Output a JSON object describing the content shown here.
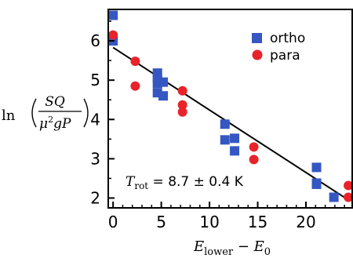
{
  "chart_data": {
    "type": "scatter",
    "xlabel": {
      "main": "E",
      "sub1": "lower",
      "mid": " − ",
      "main2": "E",
      "sub2": "0"
    },
    "ylabel": {
      "prefix": "ln",
      "num": "SQ",
      "den_mu": "μ",
      "den_sup": "2",
      "den_rest": "gP"
    },
    "xlim": [
      -0.5,
      24.8
    ],
    "ylim": [
      1.75,
      6.8
    ],
    "xticks": [
      0,
      5,
      10,
      15,
      20
    ],
    "yticks": [
      2,
      3,
      4,
      5,
      6
    ],
    "grid": false,
    "legend_position": "top-right",
    "series": [
      {
        "name": "ortho",
        "marker": "square",
        "color": "#3557c2",
        "points": [
          [
            0.0,
            6.65
          ],
          [
            0.0,
            6.0
          ],
          [
            4.6,
            5.18
          ],
          [
            4.6,
            5.05
          ],
          [
            4.6,
            4.92
          ],
          [
            5.2,
            4.95
          ],
          [
            4.6,
            4.68
          ],
          [
            5.2,
            4.6
          ],
          [
            11.6,
            3.88
          ],
          [
            11.6,
            3.48
          ],
          [
            12.6,
            3.52
          ],
          [
            12.6,
            3.2
          ],
          [
            21.1,
            2.78
          ],
          [
            21.1,
            2.38
          ],
          [
            21.1,
            2.35
          ],
          [
            22.9,
            2.02
          ]
        ]
      },
      {
        "name": "para",
        "marker": "circle",
        "color": "#e8232a",
        "points": [
          [
            0.0,
            6.15
          ],
          [
            2.3,
            5.48
          ],
          [
            2.3,
            4.85
          ],
          [
            7.2,
            4.73
          ],
          [
            7.2,
            4.37
          ],
          [
            7.2,
            4.19
          ],
          [
            14.6,
            3.3
          ],
          [
            14.6,
            2.98
          ],
          [
            24.4,
            2.32
          ],
          [
            24.4,
            2.02
          ]
        ]
      }
    ],
    "fit_line": {
      "x": [
        0.0,
        24.6
      ],
      "y": [
        5.83,
        1.92
      ],
      "color": "#000000"
    },
    "annotation": {
      "symbol": "T",
      "sub": "rot",
      "text": " = 8.7 ± 0.4 K"
    }
  }
}
